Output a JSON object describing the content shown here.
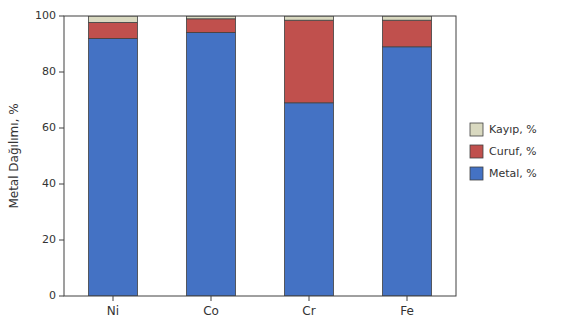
{
  "chart_data": {
    "type": "bar",
    "stacked": true,
    "categories": [
      "Ni",
      "Co",
      "Cr",
      "Fe"
    ],
    "series": [
      {
        "name": "Metal, %",
        "color": "#4472C4",
        "values": [
          91.99,
          94.1,
          69.0,
          89.0
        ]
      },
      {
        "name": "Curuf, %",
        "color": "#C0504D",
        "values": [
          5.7,
          4.9,
          29.5,
          9.5
        ]
      },
      {
        "name": "Kayıp, %",
        "color": "#D9D9C0",
        "values": [
          2.31,
          1.0,
          1.5,
          1.5
        ]
      }
    ],
    "ylabel": "Metal Dağılımı, %",
    "ylim": [
      0,
      100
    ],
    "yticks": [
      0,
      20,
      40,
      60,
      80,
      100
    ],
    "grid": false,
    "legend": "right"
  }
}
